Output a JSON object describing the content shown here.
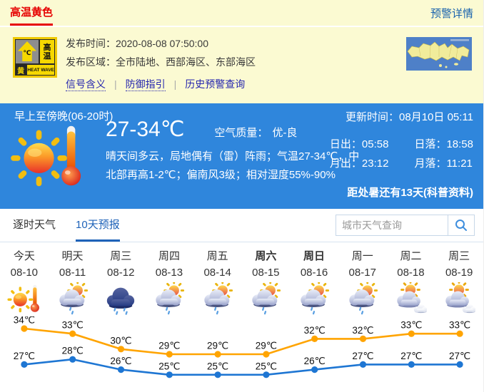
{
  "colors": {
    "bg_yellow": "#FBFAD2",
    "alert_red": "#E60000",
    "link_blue": "#1761AD",
    "panel_blue": "#2F86DC",
    "tab_active_blue": "#1E62B8",
    "line_high": "#FFA400",
    "line_low": "#1E76D3"
  },
  "alert_bar": {
    "title": "高温黄色",
    "details_link": "预警详情"
  },
  "alert": {
    "badge": {
      "degree": "℃",
      "name": "高温",
      "level": "黄",
      "subtitle": "HEAT WAVE"
    },
    "publish_time": "发布时间：2020-08-08 07:50:00",
    "publish_area": "发布区域：全市陆地、西部海区、东部海区",
    "links": [
      "信号含义",
      "防御指引",
      "历史预警查询"
    ],
    "separator": "|"
  },
  "current": {
    "period_title": "早上至傍晚(06-20时)",
    "temp_range": "27-34℃",
    "air_quality_label": "空气质量：",
    "air_quality_value": "优-良",
    "desc_line1": "晴天间多云，局地偶有（雷）阵雨；气温27-34℃，中",
    "desc_line2": "北部再高1-2℃；偏南风3级；相对湿度55%-90%",
    "update_time": "更新时间：08月10日 05:11",
    "sunrise": "日出：05:58",
    "sunset": "日落：18:58",
    "moonrise": "月出：23:12",
    "moonset": "月落：11:21",
    "countdown": "距处暑还有13天(科普资料)"
  },
  "tabs": {
    "hourly": "逐时天气",
    "ten_day": "10天预报"
  },
  "search": {
    "placeholder": "城市天气查询"
  },
  "chart_data": {
    "type": "line",
    "categories": [
      "今天",
      "明天",
      "周三",
      "周四",
      "周五",
      "周六",
      "周日",
      "周一",
      "周二",
      "周三"
    ],
    "dates": [
      "08-10",
      "08-11",
      "08-12",
      "08-13",
      "08-14",
      "08-15",
      "08-16",
      "08-17",
      "08-18",
      "08-19"
    ],
    "bold_indices": [
      5,
      6
    ],
    "icons": [
      "hot",
      "sun-shower",
      "rain",
      "sun-shower",
      "sun-shower",
      "sun-shower",
      "sun-shower",
      "sun-shower",
      "sun-clouds",
      "sun-clouds"
    ],
    "unit": "℃",
    "ylim": [
      24,
      35
    ],
    "legend": "none",
    "series": [
      {
        "name": "最高气温",
        "color": "#FFA400",
        "values": [
          34,
          33,
          30,
          29,
          29,
          29,
          32,
          32,
          33,
          33
        ]
      },
      {
        "name": "最低气温",
        "color": "#1E76D3",
        "values": [
          27,
          28,
          26,
          25,
          25,
          25,
          26,
          27,
          27,
          27
        ]
      }
    ]
  }
}
